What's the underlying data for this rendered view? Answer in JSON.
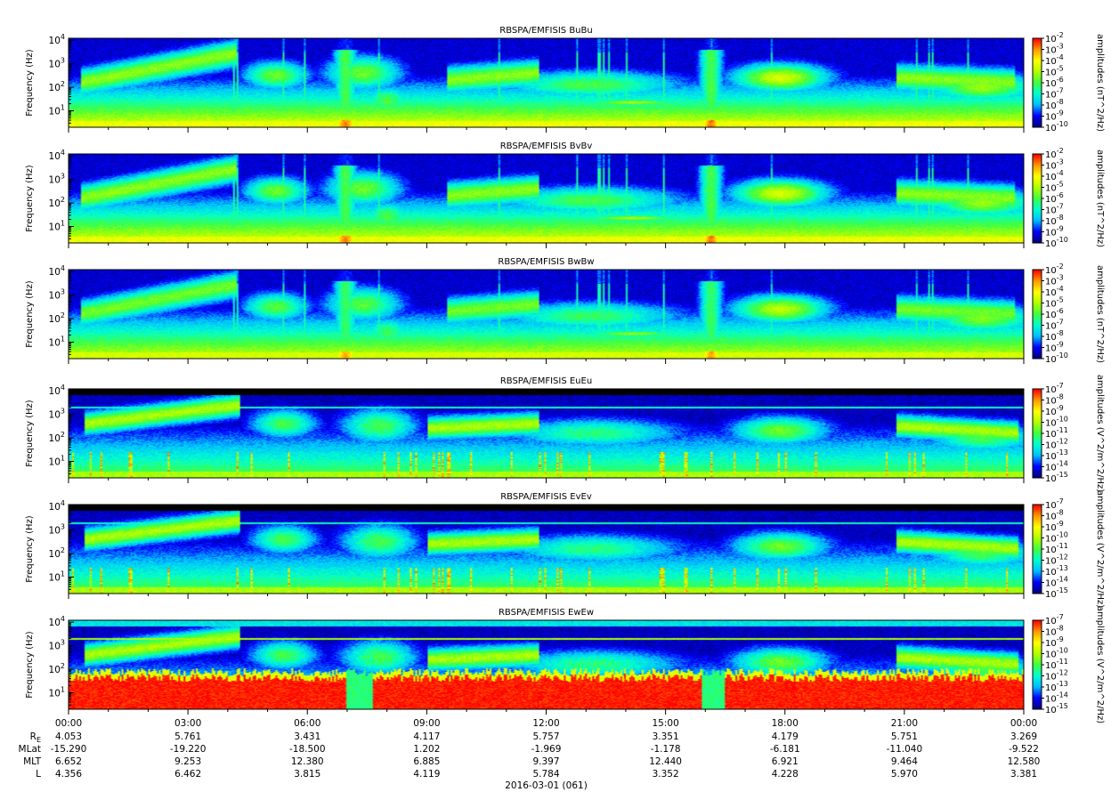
{
  "chart_data": {
    "type": "heatmap",
    "date_label": "2016-03-01 (061)",
    "x_ticks": [
      "00:00",
      "03:00",
      "06:00",
      "09:00",
      "12:00",
      "15:00",
      "18:00",
      "21:00",
      "00:00"
    ],
    "x_range_hours": [
      0,
      24
    ],
    "y_scale": "log",
    "y_range_hz": [
      2,
      12000
    ],
    "y_label": "Frequency (Hz)",
    "y_tick_exponents": [
      1,
      2,
      3,
      4
    ],
    "colormap": [
      "#00007f",
      "#0000ff",
      "#00bfff",
      "#00ffd0",
      "#40ff40",
      "#b0ff00",
      "#ffff00",
      "#ff9900",
      "#ff0000"
    ],
    "panels": [
      {
        "title": "RBSPA/EMFISIS  BuBu",
        "cb_label": "amplitudes (nT^2/Hz)",
        "cb_exponents": [
          -2,
          -3,
          -4,
          -5,
          -6,
          -7,
          -8,
          -9,
          -10
        ],
        "kind": "B1"
      },
      {
        "title": "RBSPA/EMFISIS  BvBv",
        "cb_label": "amplitudes (nT^2/Hz)",
        "cb_exponents": [
          -2,
          -3,
          -4,
          -5,
          -6,
          -7,
          -8,
          -9,
          -10
        ],
        "kind": "B2"
      },
      {
        "title": "RBSPA/EMFISIS  BwBw",
        "cb_label": "amplitudes (nT^2/Hz)",
        "cb_exponents": [
          -2,
          -3,
          -4,
          -5,
          -6,
          -7,
          -8,
          -9,
          -10
        ],
        "kind": "B3"
      },
      {
        "title": "RBSPA/EMFISIS  EuEu",
        "cb_label": "amplitudes (V^2/m^2/Hz)",
        "cb_exponents": [
          -7,
          -8,
          -9,
          -10,
          -11,
          -12,
          -13,
          -14,
          -15
        ],
        "kind": "E1"
      },
      {
        "title": "RBSPA/EMFISIS  EvEv",
        "cb_label": "amplitudes (V^2/m^2/Hz)",
        "cb_exponents": [
          -7,
          -8,
          -9,
          -10,
          -11,
          -12,
          -13,
          -14,
          -15
        ],
        "kind": "E2"
      },
      {
        "title": "RBSPA/EMFISIS  EwEw",
        "cb_label": "amplitudes (V^2/m^2/Hz)",
        "cb_exponents": [
          -7,
          -8,
          -9,
          -10,
          -11,
          -12,
          -13,
          -14,
          -15
        ],
        "kind": "E3"
      }
    ],
    "ephemeris": [
      {
        "label": "R",
        "sub": "E",
        "values": [
          "4.053",
          "5.761",
          "3.431",
          "4.117",
          "5.757",
          "3.351",
          "4.179",
          "5.751",
          "3.269"
        ]
      },
      {
        "label": "MLat",
        "values": [
          "-15.290",
          "-19.220",
          "-18.500",
          "1.202",
          "-1.969",
          "-1.178",
          "-6.181",
          "-11.040",
          "-9.522"
        ]
      },
      {
        "label": "MLT",
        "values": [
          "6.652",
          "9.253",
          "12.380",
          "6.885",
          "9.397",
          "12.440",
          "6.921",
          "9.464",
          "12.580"
        ]
      },
      {
        "label": "L",
        "values": [
          "4.356",
          "6.462",
          "3.815",
          "4.119",
          "5.784",
          "3.352",
          "4.228",
          "5.970",
          "3.381"
        ]
      }
    ]
  }
}
